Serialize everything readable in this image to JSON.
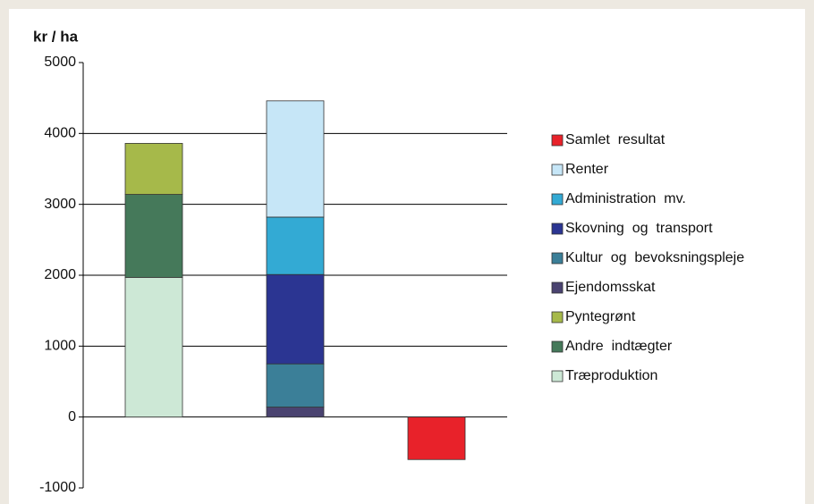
{
  "chart_data": {
    "type": "stacked_bar",
    "y_label": "kr  /  ha",
    "categories": [
      null,
      null,
      null
    ],
    "ylim": [
      -1000,
      5000
    ],
    "yticks": [
      -1000,
      0,
      1000,
      2000,
      3000,
      4000,
      5000
    ],
    "grid": true,
    "legend": "right",
    "series": [
      {
        "name": "Træproduktion",
        "color": "#cde8d6",
        "values": [
          1970,
          null,
          null
        ]
      },
      {
        "name": "Andre  indtægter",
        "color": "#45795a",
        "values": [
          1170,
          null,
          null
        ]
      },
      {
        "name": "Pyntegrønt",
        "color": "#a6b94a",
        "values": [
          720,
          null,
          null
        ]
      },
      {
        "name": "Ejendomsskat",
        "color": "#4a4370",
        "values": [
          null,
          140,
          null
        ]
      },
      {
        "name": "Kultur  og  bevoksningspleje",
        "color": "#3b7f98",
        "values": [
          null,
          610,
          null
        ]
      },
      {
        "name": "Skovning  og  transport",
        "color": "#2b3592",
        "values": [
          null,
          1260,
          null
        ]
      },
      {
        "name": "Administration  mv.",
        "color": "#33aad4",
        "values": [
          null,
          810,
          null
        ]
      },
      {
        "name": "Renter",
        "color": "#c6e6f7",
        "values": [
          null,
          1640,
          null
        ]
      },
      {
        "name": "Samlet  resultat",
        "color": "#e8222a",
        "values": [
          null,
          null,
          -600
        ]
      }
    ]
  }
}
